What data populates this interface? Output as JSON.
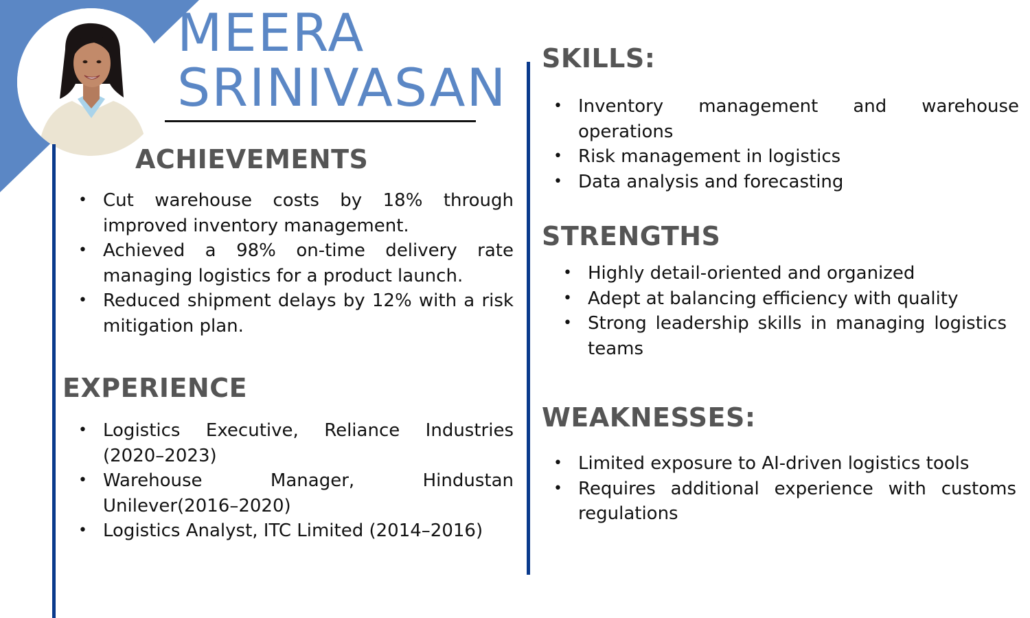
{
  "profile": {
    "first_name": "MEERA",
    "last_name": "SRINIVASAN",
    "photo_icon": "person-portrait"
  },
  "colors": {
    "accent": "#5b87c5",
    "divider": "#0a3a8c",
    "heading": "#555555"
  },
  "achievements": {
    "title": "ACHIEVEMENTS",
    "items": [
      "Cut warehouse costs by 18% through improved inventory management.",
      "Achieved a 98% on-time delivery rate managing logistics for a product launch.",
      "Reduced shipment delays by 12% with a risk mitigation plan."
    ]
  },
  "experience": {
    "title": "EXPERIENCE",
    "items": [
      "Logistics Executive, Reliance Industries (2020–2023)",
      "Warehouse Manager, Hindustan Unilever(2016–2020)",
      "Logistics Analyst, ITC Limited (2014–2016)"
    ]
  },
  "skills": {
    "title": "SKILLS:",
    "items": [
      "Inventory management and warehouse operations",
      "Risk management in logistics",
      "Data analysis and forecasting"
    ]
  },
  "strengths": {
    "title": "STRENGTHS",
    "items": [
      "Highly detail-oriented and organized",
      "Adept at balancing efficiency with quality",
      "Strong leadership skills in managing logistics teams"
    ]
  },
  "weaknesses": {
    "title": "WEAKNESSES:",
    "items": [
      "Limited exposure to AI-driven logistics tools",
      "Requires additional experience with customs regulations"
    ]
  }
}
